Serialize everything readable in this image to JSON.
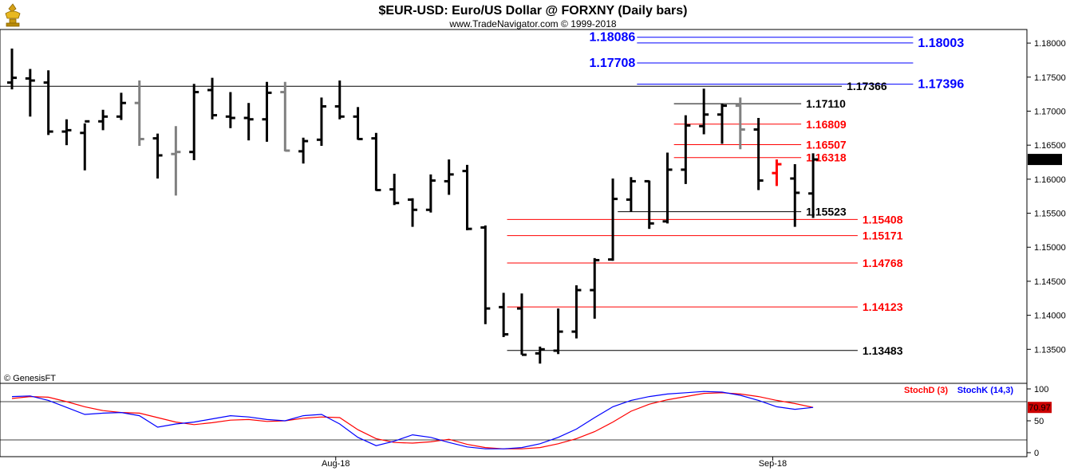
{
  "header": {
    "title": "$EUR-USD:  Euro/US Dollar @ FORXNY  (Daily bars)",
    "subtitle": "www.TradeNavigator.com © 1999-2018",
    "logo_icon": "golden-bull-and-bear-trophy-icon"
  },
  "watermark": "© GenesisFT",
  "colors": {
    "bar_black": "#000000",
    "bar_gray": "#808080",
    "bar_red": "#ff0000",
    "level_blue": "#0000ff",
    "level_red": "#ff0000",
    "level_black": "#000000",
    "stoch_d": "#ff0000",
    "stoch_k": "#0000ff",
    "current_price_bg": "#000000"
  },
  "chart_data": [
    {
      "type": "ohlc",
      "title": "$EUR-USD:  Euro/US Dollar @ FORXNY  (Daily bars)",
      "ylim": [
        1.13,
        1.182
      ],
      "y_ticks": [
        "1.18000",
        "1.17500",
        "1.17000",
        "1.16500",
        "1.16000",
        "1.15500",
        "1.15000",
        "1.14500",
        "1.14000",
        "1.13500"
      ],
      "x_labels": [
        "Aug-18",
        "Sep-18"
      ],
      "current_price": "1.16290",
      "bars": [
        {
          "h": 1.1792,
          "l": 1.1732,
          "o": 1.1742,
          "c": 1.1749,
          "color": "black"
        },
        {
          "h": 1.1762,
          "l": 1.1692,
          "o": 1.1748,
          "c": 1.1745,
          "color": "black"
        },
        {
          "h": 1.176,
          "l": 1.1665,
          "o": 1.1742,
          "c": 1.167,
          "color": "black"
        },
        {
          "h": 1.1688,
          "l": 1.165,
          "o": 1.167,
          "c": 1.1672,
          "color": "black"
        },
        {
          "h": 1.1682,
          "l": 1.1613,
          "o": 1.1668,
          "c": 1.1685,
          "color": "black"
        },
        {
          "h": 1.1702,
          "l": 1.1672,
          "o": 1.1685,
          "c": 1.1692,
          "color": "black"
        },
        {
          "h": 1.1727,
          "l": 1.1687,
          "o": 1.1692,
          "c": 1.1712,
          "color": "black"
        },
        {
          "h": 1.1745,
          "l": 1.1649,
          "o": 1.1712,
          "c": 1.1659,
          "color": "gray"
        },
        {
          "h": 1.1667,
          "l": 1.1601,
          "o": 1.166,
          "c": 1.1635,
          "color": "black"
        },
        {
          "h": 1.1678,
          "l": 1.1576,
          "o": 1.1637,
          "c": 1.164,
          "color": "gray"
        },
        {
          "h": 1.174,
          "l": 1.1628,
          "o": 1.164,
          "c": 1.1728,
          "color": "black"
        },
        {
          "h": 1.1749,
          "l": 1.1688,
          "o": 1.1731,
          "c": 1.1694,
          "color": "black"
        },
        {
          "h": 1.1728,
          "l": 1.1675,
          "o": 1.1692,
          "c": 1.169,
          "color": "black"
        },
        {
          "h": 1.1712,
          "l": 1.1657,
          "o": 1.169,
          "c": 1.1688,
          "color": "black"
        },
        {
          "h": 1.1743,
          "l": 1.1655,
          "o": 1.1688,
          "c": 1.1727,
          "color": "black"
        },
        {
          "h": 1.1743,
          "l": 1.1641,
          "o": 1.1728,
          "c": 1.1642,
          "color": "gray"
        },
        {
          "h": 1.1661,
          "l": 1.1623,
          "o": 1.1641,
          "c": 1.1656,
          "color": "black"
        },
        {
          "h": 1.172,
          "l": 1.1649,
          "o": 1.1658,
          "c": 1.1707,
          "color": "black"
        },
        {
          "h": 1.1745,
          "l": 1.1688,
          "o": 1.1707,
          "c": 1.1692,
          "color": "black"
        },
        {
          "h": 1.1706,
          "l": 1.1658,
          "o": 1.1692,
          "c": 1.1659,
          "color": "black"
        },
        {
          "h": 1.1668,
          "l": 1.1583,
          "o": 1.166,
          "c": 1.1584,
          "color": "black"
        },
        {
          "h": 1.1608,
          "l": 1.1562,
          "o": 1.1585,
          "c": 1.1565,
          "color": "black"
        },
        {
          "h": 1.1572,
          "l": 1.153,
          "o": 1.157,
          "c": 1.1555,
          "color": "black"
        },
        {
          "h": 1.1607,
          "l": 1.1551,
          "o": 1.1555,
          "c": 1.1598,
          "color": "black"
        },
        {
          "h": 1.1629,
          "l": 1.1577,
          "o": 1.1597,
          "c": 1.1607,
          "color": "black"
        },
        {
          "h": 1.1621,
          "l": 1.1525,
          "o": 1.1612,
          "c": 1.1527,
          "color": "black"
        },
        {
          "h": 1.1532,
          "l": 1.1387,
          "o": 1.1529,
          "c": 1.141,
          "color": "black"
        },
        {
          "h": 1.1433,
          "l": 1.1368,
          "o": 1.1412,
          "c": 1.1372,
          "color": "black"
        },
        {
          "h": 1.1432,
          "l": 1.1342,
          "o": 1.141,
          "c": 1.1342,
          "color": "black"
        },
        {
          "h": 1.1354,
          "l": 1.1329,
          "o": 1.1344,
          "c": 1.135,
          "color": "black"
        },
        {
          "h": 1.141,
          "l": 1.1343,
          "o": 1.1348,
          "c": 1.1376,
          "color": "black"
        },
        {
          "h": 1.1444,
          "l": 1.1366,
          "o": 1.1376,
          "c": 1.1437,
          "color": "black"
        },
        {
          "h": 1.1484,
          "l": 1.1395,
          "o": 1.1437,
          "c": 1.1481,
          "color": "black"
        },
        {
          "h": 1.1601,
          "l": 1.148,
          "o": 1.1482,
          "c": 1.1571,
          "color": "black"
        },
        {
          "h": 1.1603,
          "l": 1.1552,
          "o": 1.157,
          "c": 1.1597,
          "color": "black"
        },
        {
          "h": 1.1598,
          "l": 1.1527,
          "o": 1.1597,
          "c": 1.1535,
          "color": "black"
        },
        {
          "h": 1.1639,
          "l": 1.1535,
          "o": 1.1538,
          "c": 1.1614,
          "color": "black"
        },
        {
          "h": 1.1694,
          "l": 1.1593,
          "o": 1.1614,
          "c": 1.1679,
          "color": "black"
        },
        {
          "h": 1.1733,
          "l": 1.1666,
          "o": 1.1678,
          "c": 1.1695,
          "color": "black"
        },
        {
          "h": 1.1711,
          "l": 1.1652,
          "o": 1.1695,
          "c": 1.1708,
          "color": "black"
        },
        {
          "h": 1.172,
          "l": 1.1644,
          "o": 1.1708,
          "c": 1.1673,
          "color": "gray"
        },
        {
          "h": 1.169,
          "l": 1.1584,
          "o": 1.1673,
          "c": 1.1598,
          "color": "black"
        },
        {
          "h": 1.1629,
          "l": 1.159,
          "o": 1.1609,
          "c": 1.1622,
          "color": "red"
        },
        {
          "h": 1.1622,
          "l": 1.153,
          "o": 1.1601,
          "c": 1.158,
          "color": "black"
        },
        {
          "h": 1.1638,
          "l": 1.1543,
          "o": 1.1579,
          "c": 1.1629,
          "color": "black"
        }
      ],
      "levels": [
        {
          "label": "1.18086",
          "value": 1.18086,
          "color": "blue",
          "x0": 0.6203,
          "x1": 0.8892,
          "label_side": "left"
        },
        {
          "label": "1.18003",
          "value": 1.18003,
          "color": "blue",
          "x0": 0.6203,
          "x1": 0.8892,
          "label_side": "right"
        },
        {
          "label": "1.17708",
          "value": 1.17708,
          "color": "blue",
          "x0": 0.6203,
          "x1": 0.8892,
          "label_side": "left"
        },
        {
          "label": "1.17396",
          "value": 1.17396,
          "color": "blue",
          "x0": 0.6203,
          "x1": 0.8892,
          "label_side": "right"
        },
        {
          "label": "1.17366",
          "value": 1.17366,
          "color": "black",
          "x0": 0.0,
          "x1": 0.8198,
          "label_side": "right"
        },
        {
          "label": "1.17110",
          "value": 1.1711,
          "color": "black",
          "x0": 0.6563,
          "x1": 0.7802,
          "label_side": "right"
        },
        {
          "label": "1.16809",
          "value": 1.16809,
          "color": "red",
          "x0": 0.6563,
          "x1": 0.7802,
          "label_side": "right"
        },
        {
          "label": "1.16507",
          "value": 1.16507,
          "color": "red",
          "x0": 0.6563,
          "x1": 0.7802,
          "label_side": "right"
        },
        {
          "label": "1.16318",
          "value": 1.16318,
          "color": "red",
          "x0": 0.6563,
          "x1": 0.7802,
          "label_side": "right"
        },
        {
          "label": "1.15523",
          "value": 1.15523,
          "color": "black",
          "x0": 0.6016,
          "x1": 0.7802,
          "label_side": "right"
        },
        {
          "label": "1.15408",
          "value": 1.15408,
          "color": "red",
          "x0": 0.4938,
          "x1": 0.8352,
          "label_side": "right"
        },
        {
          "label": "1.15171",
          "value": 1.15171,
          "color": "red",
          "x0": 0.4938,
          "x1": 0.8352,
          "label_side": "right"
        },
        {
          "label": "1.14768",
          "value": 1.14768,
          "color": "red",
          "x0": 0.4938,
          "x1": 0.8352,
          "label_side": "right"
        },
        {
          "label": "1.14123",
          "value": 1.14123,
          "color": "red",
          "x0": 0.4938,
          "x1": 0.8352,
          "label_side": "right"
        },
        {
          "label": "1.13483",
          "value": 1.13483,
          "color": "black",
          "x0": 0.4938,
          "x1": 0.8352,
          "label_side": "right"
        }
      ]
    },
    {
      "type": "line",
      "ylim": [
        0,
        100
      ],
      "y_ticks": [
        "100",
        "50",
        "0"
      ],
      "reference_lines": [
        80,
        20
      ],
      "current_value": "70.97",
      "series": [
        {
          "name": "StochD (3)",
          "color": "red",
          "values": [
            85,
            88,
            87,
            80,
            72,
            66,
            63,
            62,
            55,
            48,
            44,
            47,
            51,
            52,
            49,
            50,
            54,
            56,
            55,
            36,
            22,
            16,
            15,
            17,
            21,
            13,
            8,
            6,
            6,
            8,
            14,
            22,
            33,
            48,
            65,
            76,
            83,
            88,
            93,
            94,
            92,
            88,
            82,
            77,
            71
          ]
        },
        {
          "name": "StochK (14,3)",
          "color": "blue",
          "values": [
            88,
            89,
            82,
            71,
            60,
            62,
            63,
            58,
            40,
            45,
            48,
            53,
            58,
            56,
            52,
            50,
            58,
            60,
            45,
            24,
            11,
            18,
            28,
            24,
            16,
            9,
            6,
            6,
            8,
            14,
            24,
            37,
            55,
            72,
            82,
            88,
            92,
            94,
            96,
            95,
            90,
            82,
            72,
            68,
            71
          ]
        }
      ]
    }
  ]
}
